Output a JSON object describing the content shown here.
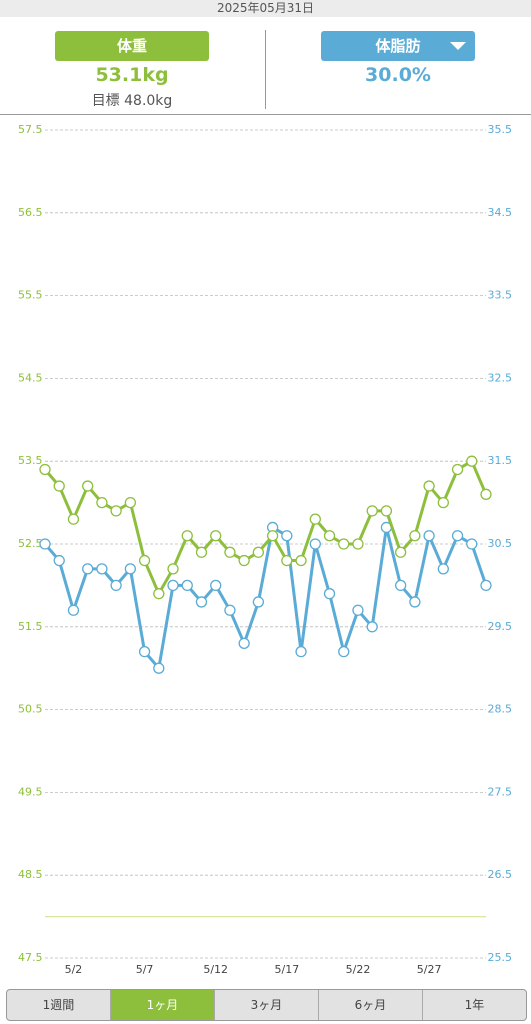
{
  "date": "2025年05月31日",
  "header": {
    "weight_button": "体重",
    "weight_value": "53.1kg",
    "goal": "目標 48.0kg",
    "fat_button": "体脂肪",
    "fat_value": "30.0%"
  },
  "tabs": [
    "1週間",
    "1ヶ月",
    "3ヶ月",
    "6ヶ月",
    "1年"
  ],
  "active_tab": 1,
  "chart_data": {
    "type": "line",
    "categories": [
      null,
      null,
      "5/2",
      null,
      null,
      null,
      null,
      "5/7",
      null,
      null,
      null,
      null,
      "5/12",
      null,
      null,
      null,
      null,
      "5/17",
      null,
      null,
      null,
      null,
      "5/22",
      null,
      null,
      null,
      null,
      "5/27",
      null,
      null,
      null,
      null
    ],
    "series": [
      {
        "name": "体重",
        "color": "#8dbf3c",
        "values": [
          53.4,
          53.2,
          52.8,
          53.2,
          53.0,
          52.9,
          53.0,
          52.3,
          51.9,
          52.2,
          52.6,
          52.4,
          52.6,
          52.4,
          52.3,
          52.4,
          52.6,
          52.3,
          52.3,
          52.8,
          52.6,
          52.5,
          52.5,
          52.9,
          52.9,
          52.4,
          52.6,
          53.2,
          53.0,
          53.4,
          53.5,
          53.1
        ]
      },
      {
        "name": "体脂肪",
        "color": "#5aabd6",
        "axis": "y2",
        "values": [
          30.5,
          30.3,
          29.7,
          30.2,
          30.2,
          30.0,
          30.2,
          29.2,
          29.0,
          30.0,
          30.0,
          29.8,
          30.0,
          29.7,
          29.3,
          29.8,
          30.7,
          30.6,
          29.2,
          30.5,
          29.9,
          29.2,
          29.7,
          29.5,
          30.7,
          30.0,
          29.8,
          30.6,
          30.2,
          30.6,
          30.5,
          30.0
        ]
      }
    ],
    "goal_line": 48.0,
    "goal_color": "#d8e6a0",
    "ylim": [
      47.5,
      57.5
    ],
    "yticks": [
      47.5,
      48.5,
      49.5,
      50.5,
      51.5,
      52.5,
      53.5,
      54.5,
      55.5,
      56.5,
      57.5
    ],
    "y2lim": [
      25.5,
      35.5
    ],
    "y2ticks": [
      25.5,
      26.5,
      27.5,
      28.5,
      29.5,
      30.5,
      31.5,
      32.5,
      33.5,
      34.5,
      35.5
    ],
    "grid": true
  }
}
